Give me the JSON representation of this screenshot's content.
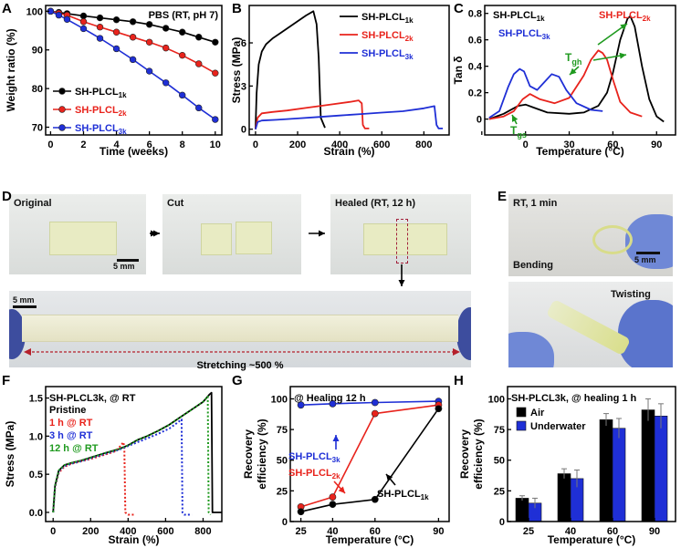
{
  "panel_letters": [
    "A",
    "B",
    "C",
    "D",
    "E",
    "F",
    "G",
    "H"
  ],
  "photos": {
    "original": "Original",
    "cut": "Cut",
    "healed": "Healed (RT, 12 h)",
    "scale_5mm": "5 mm",
    "stretch_scale": "5 mm",
    "stretching": "Stretching ~500 %",
    "e_time": "RT, 1 min",
    "bending": "Bending",
    "twisting": "Twisting",
    "e_scale": "5 mm"
  },
  "colors": {
    "k": "#000000",
    "r": "#e8231c",
    "b": "#1f2fd6",
    "g": "#1f9a1f"
  },
  "chart_data": [
    {
      "id": "A",
      "type": "line",
      "title": "PBS (RT, pH 7)",
      "xlabel": "Time (weeks)",
      "ylabel": "Weight ratio (%)",
      "xlim": [
        -0.3,
        10.4
      ],
      "ylim": [
        68,
        101.5
      ],
      "xticks": [
        0,
        2,
        4,
        6,
        8,
        10
      ],
      "yticks": [
        70,
        80,
        90,
        100
      ],
      "legend": [
        "SH-PLCL",
        "SH-PLCL",
        "SH-PLCL"
      ],
      "legend_sub": [
        "1k",
        "2k",
        "3k"
      ],
      "series": [
        {
          "name": "SH-PLCL1k",
          "color": "k",
          "x": [
            0,
            0.5,
            1,
            2,
            3,
            4,
            5,
            6,
            7,
            8,
            9,
            10
          ],
          "y": [
            100,
            99.7,
            99.4,
            98.8,
            98.3,
            97.8,
            97.3,
            96.6,
            95.6,
            94.6,
            93.3,
            92
          ]
        },
        {
          "name": "SH-PLCL2k",
          "color": "r",
          "x": [
            0,
            0.5,
            1,
            2,
            3,
            4,
            5,
            6,
            7,
            8,
            9,
            10
          ],
          "y": [
            100,
            99.5,
            99,
            97.3,
            95.9,
            94.6,
            93.3,
            92,
            90.5,
            88.6,
            86.4,
            84
          ]
        },
        {
          "name": "SH-PLCL3k",
          "color": "b",
          "x": [
            0,
            0.5,
            1,
            2,
            3,
            4,
            5,
            6,
            7,
            8,
            9,
            10
          ],
          "y": [
            100,
            99,
            97.9,
            95.5,
            93,
            90.3,
            87.5,
            84.5,
            81.5,
            78.3,
            75,
            72
          ]
        }
      ]
    },
    {
      "id": "B",
      "type": "line",
      "xlabel": "Strain (%)",
      "ylabel": "Stress (MPa)",
      "xlim": [
        -30,
        920
      ],
      "ylim": [
        -0.4,
        8.6
      ],
      "xticks": [
        0,
        200,
        400,
        600,
        800
      ],
      "yticks": [
        0,
        3,
        6
      ],
      "legend": [
        "SH-PLCL",
        "SH-PLCL",
        "SH-PLCL"
      ],
      "legend_sub": [
        "1k",
        "2k",
        "3k"
      ],
      "series": [
        {
          "name": "SH-PLCL1k",
          "color": "k",
          "x": [
            0,
            5,
            15,
            30,
            50,
            80,
            120,
            180,
            240,
            275,
            290,
            300,
            310,
            330
          ],
          "y": [
            0,
            2.5,
            4.5,
            5.4,
            5.9,
            6.3,
            6.7,
            7.3,
            7.9,
            8.2,
            7.3,
            5,
            0.8,
            0.1
          ]
        },
        {
          "name": "SH-PLCL2k",
          "color": "r",
          "x": [
            0,
            10,
            30,
            80,
            150,
            250,
            350,
            450,
            490,
            505,
            510,
            520,
            540
          ],
          "y": [
            0,
            0.8,
            1.1,
            1.2,
            1.3,
            1.5,
            1.7,
            1.9,
            2,
            1.8,
            0.3,
            0.05,
            0.05
          ]
        },
        {
          "name": "SH-PLCL3k",
          "color": "b",
          "x": [
            0,
            10,
            30,
            100,
            200,
            300,
            400,
            500,
            600,
            700,
            800,
            850,
            860,
            870,
            890
          ],
          "y": [
            0,
            0.5,
            0.6,
            0.65,
            0.75,
            0.85,
            0.95,
            1.05,
            1.15,
            1.25,
            1.45,
            1.6,
            0.3,
            0.05,
            0.05
          ]
        }
      ]
    },
    {
      "id": "C",
      "type": "line",
      "xlabel": "Temperature (°C)",
      "ylabel": "Tan δ",
      "xlim": [
        -28,
        103
      ],
      "ylim": [
        -0.12,
        0.86
      ],
      "xticks": [
        -30,
        0,
        30,
        60,
        90
      ],
      "xticklabels": [
        "",
        "0",
        "30",
        "60",
        "90"
      ],
      "yticks": [
        0,
        0.2,
        0.4,
        0.6,
        0.8
      ],
      "legend": [
        "SH-PLCL",
        "SH-PLCL",
        "SH-PLCL"
      ],
      "legend_sub": [
        "1k",
        "2k",
        "3k"
      ],
      "annotations": [
        "T",
        "T"
      ],
      "annotation_sub": [
        "gh",
        "gs"
      ],
      "series": [
        {
          "name": "SH-PLCL1k",
          "color": "k",
          "x": [
            -25,
            -15,
            -5,
            0,
            5,
            15,
            30,
            40,
            50,
            56,
            60,
            65,
            70,
            72,
            75,
            80,
            85,
            90,
            95
          ],
          "y": [
            0,
            0.04,
            0.1,
            0.11,
            0.09,
            0.05,
            0.04,
            0.05,
            0.1,
            0.2,
            0.35,
            0.6,
            0.76,
            0.78,
            0.7,
            0.4,
            0.15,
            0.02,
            -0.02
          ]
        },
        {
          "name": "SH-PLCL2k",
          "color": "r",
          "x": [
            -25,
            -15,
            -8,
            -2,
            3,
            10,
            20,
            30,
            40,
            45,
            50,
            53,
            56,
            60,
            65,
            72,
            80
          ],
          "y": [
            0,
            0.02,
            0.06,
            0.15,
            0.19,
            0.15,
            0.12,
            0.16,
            0.33,
            0.45,
            0.52,
            0.5,
            0.45,
            0.3,
            0.13,
            0.05,
            0.02
          ]
        },
        {
          "name": "SH-PLCL3k",
          "color": "b",
          "x": [
            -25,
            -18,
            -12,
            -8,
            -4,
            -1,
            3,
            8,
            13,
            18,
            23,
            28,
            35,
            45,
            53
          ],
          "y": [
            0.01,
            0.06,
            0.24,
            0.34,
            0.38,
            0.36,
            0.25,
            0.22,
            0.28,
            0.34,
            0.32,
            0.22,
            0.12,
            0.07,
            0.06
          ]
        }
      ]
    },
    {
      "id": "F",
      "type": "line",
      "xlabel": "Strain (%)",
      "ylabel": "Stress (MPa)",
      "xlim": [
        -40,
        900
      ],
      "ylim": [
        -0.12,
        1.65
      ],
      "xticks": [
        0,
        200,
        400,
        600,
        800
      ],
      "yticks": [
        0,
        0.5,
        1,
        1.5
      ],
      "yticklabels": [
        "0.0",
        "0.5",
        "1.0",
        "1.5"
      ],
      "legend": [
        "SH-PLCL3k, @ RT",
        "Pristine",
        "1 h @ RT",
        "3 h @ RT",
        "12 h @ RT"
      ],
      "series": [
        {
          "name": "Pristine",
          "color": "k",
          "dashed": false,
          "x": [
            0,
            10,
            30,
            60,
            100,
            150,
            200,
            280,
            350,
            400,
            450,
            500,
            560,
            620,
            680,
            740,
            800,
            835,
            845,
            850,
            900
          ],
          "y": [
            0,
            0.35,
            0.55,
            0.62,
            0.65,
            0.68,
            0.72,
            0.78,
            0.83,
            0.88,
            0.95,
            1.0,
            1.07,
            1.15,
            1.25,
            1.35,
            1.45,
            1.55,
            1.57,
            0,
            0
          ]
        },
        {
          "name": "1 h @ RT",
          "color": "r",
          "dashed": true,
          "x": [
            0,
            10,
            30,
            60,
            100,
            150,
            200,
            280,
            330,
            355,
            375,
            380,
            385,
            400,
            440
          ],
          "y": [
            0,
            0.33,
            0.52,
            0.6,
            0.64,
            0.67,
            0.7,
            0.76,
            0.8,
            0.86,
            0.92,
            0.85,
            0.0,
            -0.03,
            -0.03
          ]
        },
        {
          "name": "3 h @ RT",
          "color": "b",
          "dashed": true,
          "x": [
            0,
            10,
            30,
            60,
            100,
            150,
            200,
            280,
            350,
            400,
            450,
            500,
            560,
            620,
            660,
            685,
            690,
            700,
            740
          ],
          "y": [
            0,
            0.34,
            0.54,
            0.61,
            0.64,
            0.67,
            0.71,
            0.77,
            0.82,
            0.87,
            0.92,
            0.97,
            1.03,
            1.1,
            1.17,
            1.22,
            0.0,
            -0.03,
            -0.03
          ]
        },
        {
          "name": "12 h @ RT",
          "color": "g",
          "dashed": true,
          "x": [
            0,
            10,
            30,
            60,
            100,
            150,
            200,
            280,
            350,
            400,
            450,
            500,
            560,
            620,
            680,
            740,
            800,
            825,
            830,
            840
          ],
          "y": [
            0,
            0.35,
            0.55,
            0.62,
            0.65,
            0.68,
            0.72,
            0.78,
            0.83,
            0.88,
            0.95,
            1.0,
            1.07,
            1.15,
            1.25,
            1.35,
            1.45,
            1.52,
            0.0,
            -0.03
          ]
        }
      ]
    },
    {
      "id": "G",
      "type": "line",
      "title": "@ Healing 12 h",
      "xlabel": "Temperature (°C)",
      "ylabel": "Recovery efficiency (%)",
      "categories": [
        "25",
        "40",
        "60",
        "90"
      ],
      "xlim": [
        20,
        95
      ],
      "ylim": [
        0,
        110
      ],
      "yticks": [
        0,
        25,
        50,
        75,
        100
      ],
      "labels": [
        "SH-PLCL",
        "SH-PLCL",
        "SH-PLCL"
      ],
      "label_sub": [
        "3k",
        "2k",
        "1k"
      ],
      "series": [
        {
          "name": "SH-PLCL3k",
          "color": "b",
          "x": [
            25,
            40,
            60,
            90
          ],
          "y": [
            95,
            96,
            97,
            98
          ]
        },
        {
          "name": "SH-PLCL2k",
          "color": "r",
          "x": [
            25,
            40,
            60,
            90
          ],
          "y": [
            12,
            20,
            88,
            95
          ]
        },
        {
          "name": "SH-PLCL1k",
          "color": "k",
          "x": [
            25,
            40,
            60,
            90
          ],
          "y": [
            8,
            14,
            18,
            92
          ]
        }
      ]
    },
    {
      "id": "H",
      "type": "bar",
      "title": "SH-PLCL3k, @ healing 1 h",
      "xlabel": "Temperature (°C)",
      "ylabel": "Recovery efficiency (%)",
      "categories": [
        "25",
        "40",
        "60",
        "90"
      ],
      "ylim": [
        0,
        110
      ],
      "yticks": [
        0,
        25,
        50,
        75,
        100
      ],
      "series": [
        {
          "name": "Air",
          "color": "k",
          "values": [
            19,
            39,
            83,
            91
          ],
          "err": [
            2,
            4,
            5,
            9
          ]
        },
        {
          "name": "Underwater",
          "color": "b",
          "values": [
            15,
            35,
            76,
            86
          ],
          "err": [
            4,
            7,
            8,
            10
          ]
        }
      ]
    }
  ]
}
